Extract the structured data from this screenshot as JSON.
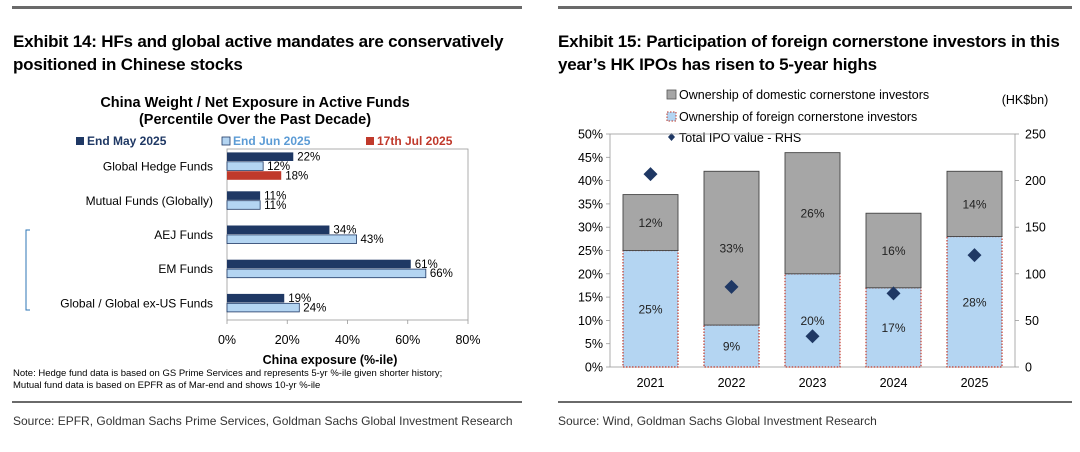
{
  "left": {
    "title_line1": "Exhibit 14: HFs and global active mandates are conservatively",
    "title_line2": "positioned in Chinese stocks",
    "source": "Source: EPFR, Goldman Sachs Prime Services, Goldman Sachs Global Investment Research"
  },
  "right": {
    "title_line1": "Exhibit 15: Participation of foreign cornerstone investors in this",
    "title_line2": "year’s HK IPOs has risen to 5-year highs",
    "source": "Source: Wind, Goldman Sachs Global Investment Research"
  },
  "colors": {
    "navy": "#1f3864",
    "light_blue": "#b4d5f2",
    "red": "#c0392b",
    "gray": "#a6a6a6",
    "diamond": "#1f3864",
    "rule": "#6a6a6a"
  },
  "chart_data": [
    {
      "type": "bar",
      "orientation": "horizontal",
      "title_line1": "China Weight / Net Exposure in Active Funds",
      "title_line2": "(Percentile Over the Past Decade)",
      "categories": [
        "Global Hedge Funds",
        "Mutual Funds (Globally)",
        "AEJ Funds",
        "EM Funds",
        "Global / Global ex-US Funds"
      ],
      "series": [
        {
          "name": "End May 2025",
          "values": [
            22,
            11,
            34,
            61,
            19
          ],
          "labels": [
            "22%",
            "11%",
            "34%",
            "61%",
            "19%"
          ]
        },
        {
          "name": "End Jun 2025",
          "values": [
            12,
            11,
            43,
            66,
            24
          ],
          "labels": [
            "12%",
            "11%",
            "43%",
            "66%",
            "24%"
          ]
        },
        {
          "name": "17th Jul 2025",
          "values": [
            18,
            null,
            null,
            null,
            null
          ],
          "labels": [
            "18%",
            null,
            null,
            null,
            null
          ]
        }
      ],
      "xlabel": "China exposure  (%-ile)",
      "xlim": [
        0,
        80
      ],
      "xticks": [
        "0%",
        "20%",
        "40%",
        "60%",
        "80%"
      ],
      "note_line1": "Note: Hedge fund data is based on GS Prime Services and represents 5-yr %-ile given shorter history;",
      "note_line2": "Mutual fund data is based on EPFR as of Mar-end and shows 10-yr %-ile",
      "legend_position": "top"
    },
    {
      "type": "bar",
      "stacked": true,
      "categories": [
        "2021",
        "2022",
        "2023",
        "2024",
        "2025"
      ],
      "series": [
        {
          "name": "Ownership of foreign cornerstone investors",
          "values": [
            25,
            9,
            20,
            17,
            28
          ],
          "labels": [
            "25%",
            "9%",
            "20%",
            "17%",
            "28%"
          ]
        },
        {
          "name": "Ownership of domestic cornerstone investors",
          "values": [
            12,
            33,
            26,
            16,
            14
          ],
          "labels": [
            "12%",
            "33%",
            "26%",
            "16%",
            "14%"
          ]
        }
      ],
      "line_series": {
        "name": "Total IPO value - RHS",
        "axis": "right",
        "values": [
          207,
          86,
          33,
          79,
          120
        ]
      },
      "ylim": [
        0,
        50
      ],
      "yticks": [
        "0%",
        "5%",
        "10%",
        "15%",
        "20%",
        "25%",
        "30%",
        "35%",
        "40%",
        "45%",
        "50%"
      ],
      "y2lim": [
        0,
        250
      ],
      "y2ticks": [
        "0",
        "50",
        "100",
        "150",
        "200",
        "250"
      ],
      "y2label": "(HK$bn)",
      "legend_position": "top-left"
    }
  ]
}
